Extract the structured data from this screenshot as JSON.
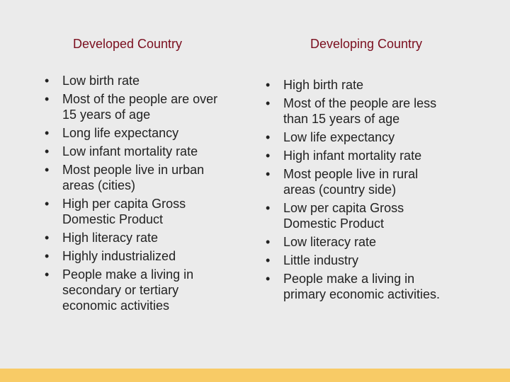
{
  "columns": [
    {
      "title": "Developed Country",
      "items": [
        "Low birth rate",
        "Most of the people are over 15 years of age",
        "Long life expectancy",
        "Low infant mortality rate",
        "Most people live in urban areas (cities)",
        "High per capita Gross Domestic Product",
        "High literacy rate",
        "Highly industrialized",
        "People make a living in secondary or tertiary economic activities"
      ]
    },
    {
      "title": "Developing Country",
      "items": [
        "High birth rate",
        "Most of the people are less than 15 years of age",
        "Low life expectancy",
        "High infant mortality rate",
        "Most people live in rural areas (country side)",
        "Low per capita Gross Domestic Product",
        "Low literacy rate",
        "Little industry",
        "People make a living in primary economic activities."
      ]
    }
  ]
}
